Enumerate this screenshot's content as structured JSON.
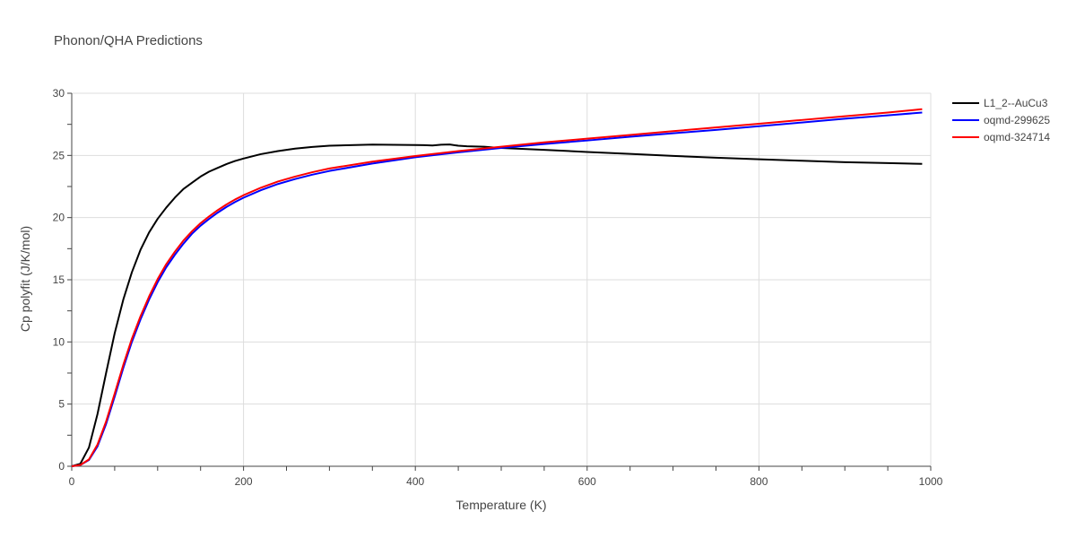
{
  "chart_data": {
    "type": "line",
    "title": "Phonon/QHA Predictions",
    "xlabel": "Temperature (K)",
    "ylabel": "Cp polyfit (J/K/mol)",
    "xlim": [
      0,
      1000
    ],
    "ylim": [
      0,
      30
    ],
    "xticks": [
      0,
      200,
      400,
      600,
      800,
      1000
    ],
    "yticks": [
      0,
      5,
      10,
      15,
      20,
      25,
      30
    ],
    "grid": true,
    "legend_position": "top-right",
    "series": [
      {
        "name": "L1_2--AuCu3",
        "color": "#000000",
        "x": [
          0,
          10,
          20,
          30,
          40,
          50,
          60,
          70,
          80,
          90,
          100,
          110,
          120,
          130,
          140,
          150,
          160,
          170,
          180,
          190,
          200,
          220,
          240,
          260,
          280,
          300,
          350,
          400,
          410,
          420,
          430,
          440,
          450,
          460,
          470,
          480,
          490,
          500,
          550,
          600,
          650,
          700,
          750,
          800,
          850,
          900,
          950,
          990
        ],
        "y": [
          0,
          0.2,
          1.5,
          4.2,
          7.5,
          10.7,
          13.4,
          15.6,
          17.4,
          18.8,
          19.9,
          20.8,
          21.6,
          22.3,
          22.8,
          23.3,
          23.7,
          24.0,
          24.3,
          24.55,
          24.75,
          25.1,
          25.35,
          25.55,
          25.68,
          25.78,
          25.87,
          25.84,
          25.83,
          25.8,
          25.86,
          25.88,
          25.78,
          25.74,
          25.72,
          25.7,
          25.65,
          25.6,
          25.45,
          25.28,
          25.12,
          24.96,
          24.82,
          24.69,
          24.57,
          24.46,
          24.38,
          24.32
        ]
      },
      {
        "name": "oqmd-299625",
        "color": "#0000ff",
        "x": [
          0,
          10,
          20,
          30,
          40,
          50,
          60,
          70,
          80,
          90,
          100,
          110,
          120,
          130,
          140,
          150,
          160,
          170,
          180,
          190,
          200,
          220,
          240,
          260,
          280,
          300,
          350,
          400,
          450,
          500,
          550,
          600,
          650,
          700,
          750,
          800,
          850,
          900,
          950,
          990
        ],
        "y": [
          0,
          0.1,
          0.5,
          1.6,
          3.4,
          5.6,
          7.9,
          10.0,
          11.8,
          13.4,
          14.8,
          16.0,
          17.0,
          17.9,
          18.7,
          19.35,
          19.9,
          20.4,
          20.85,
          21.25,
          21.6,
          22.2,
          22.7,
          23.1,
          23.45,
          23.75,
          24.35,
          24.85,
          25.25,
          25.6,
          25.92,
          26.2,
          26.5,
          26.78,
          27.05,
          27.35,
          27.65,
          27.95,
          28.22,
          28.45
        ]
      },
      {
        "name": "oqmd-324714",
        "color": "#ff0000",
        "x": [
          0,
          10,
          20,
          30,
          40,
          50,
          60,
          70,
          80,
          90,
          100,
          110,
          120,
          130,
          140,
          150,
          160,
          170,
          180,
          190,
          200,
          220,
          240,
          260,
          280,
          300,
          350,
          400,
          450,
          500,
          550,
          600,
          650,
          700,
          750,
          800,
          850,
          900,
          950,
          990
        ],
        "y": [
          0,
          0.1,
          0.55,
          1.75,
          3.6,
          5.85,
          8.15,
          10.25,
          12.05,
          13.65,
          15.05,
          16.25,
          17.25,
          18.15,
          18.9,
          19.55,
          20.1,
          20.6,
          21.05,
          21.45,
          21.8,
          22.4,
          22.9,
          23.3,
          23.65,
          23.95,
          24.5,
          24.95,
          25.35,
          25.7,
          26.05,
          26.35,
          26.65,
          26.95,
          27.25,
          27.55,
          27.85,
          28.15,
          28.45,
          28.72
        ]
      }
    ]
  }
}
